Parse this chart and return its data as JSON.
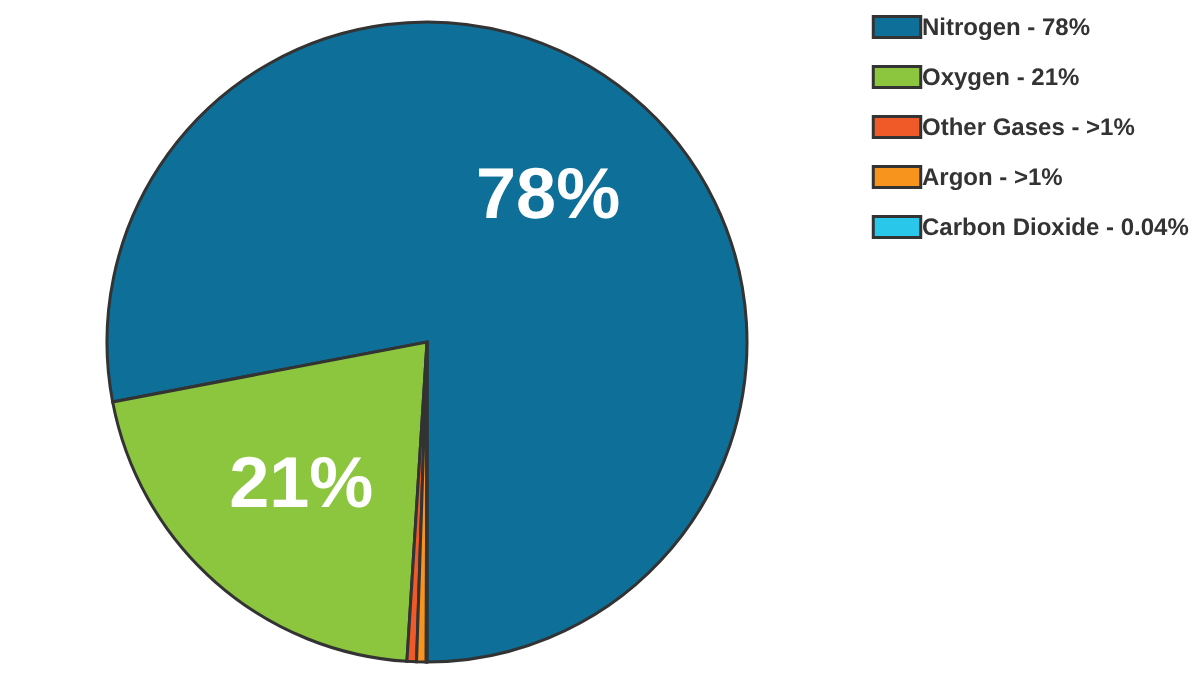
{
  "chart_data": {
    "type": "pie",
    "categories": [
      "Nitrogen - 78%",
      "Oxygen - 21%",
      "Other Gases - >1%",
      "Argon - >1%",
      "Carbon Dioxide - 0.04%"
    ],
    "values": [
      78,
      21,
      0.48,
      0.48,
      0.04
    ],
    "colors": [
      "#0e6f98",
      "#8cc63f",
      "#ef5a28",
      "#f7941d",
      "#29c8ea"
    ],
    "value_labels": [
      "78%",
      "21%",
      null,
      null,
      null
    ],
    "legend": "right"
  }
}
